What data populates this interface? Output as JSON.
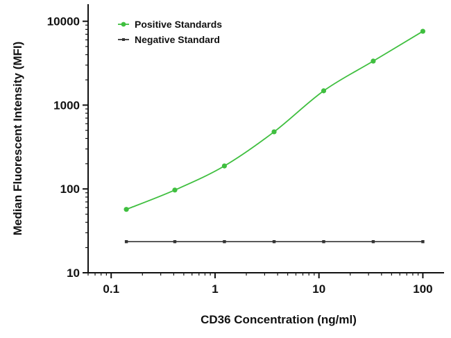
{
  "chart_data": {
    "type": "scatter",
    "title": "",
    "xlabel": "CD36 Concentration (ng/ml)",
    "ylabel": "Median  Fluorescent Intensity  (MFI)",
    "xscale": "log",
    "yscale": "log",
    "xlim": [
      0.06,
      160
    ],
    "ylim": [
      10,
      16000
    ],
    "x_ticks": [
      0.1,
      1,
      10,
      100
    ],
    "x_tick_labels": [
      "0.1",
      "1",
      "10",
      "100"
    ],
    "y_ticks": [
      10,
      100,
      1000,
      10000
    ],
    "y_tick_labels": [
      "10",
      "100",
      "1000",
      "10000"
    ],
    "legend_position": "top-left",
    "grid": false,
    "series": [
      {
        "name": "Positive Standards",
        "color": "#3fbf3f",
        "marker": "circle",
        "fit_curve": true,
        "x": [
          0.14,
          0.41,
          1.23,
          3.7,
          11.1,
          33.3,
          100
        ],
        "y": [
          57,
          97,
          188,
          480,
          1480,
          3350,
          7600
        ]
      },
      {
        "name": "Negative Standard",
        "color": "#333333",
        "marker": "square",
        "fit_curve": false,
        "x": [
          0.14,
          0.41,
          1.23,
          3.7,
          11.1,
          33.3,
          100
        ],
        "y": [
          23.5,
          23.5,
          23.5,
          23.5,
          23.5,
          23.5,
          23.5
        ]
      }
    ]
  }
}
